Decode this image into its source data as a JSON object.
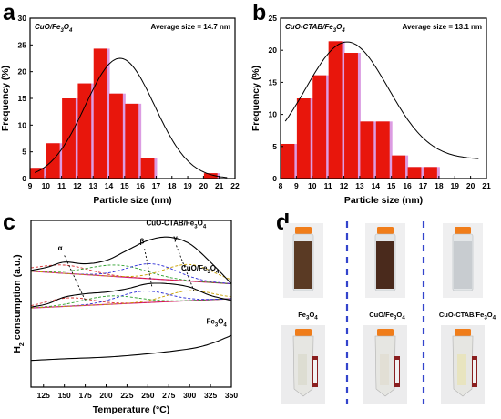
{
  "panels": {
    "a": "a",
    "b": "b",
    "c": "c",
    "d": "d"
  },
  "chart_data": [
    {
      "id": "a",
      "type": "bar",
      "sample_label": "CuO/Fe3O4",
      "annotation": "Average size = 14.7 nm",
      "xlabel": "Particle size (nm)",
      "ylabel": "Frequency (%)",
      "xlim": [
        9,
        22
      ],
      "ylim": [
        0,
        30
      ],
      "xticks": [
        9,
        10,
        11,
        12,
        13,
        14,
        15,
        16,
        17,
        18,
        19,
        20,
        21,
        22
      ],
      "yticks": [
        0,
        5,
        10,
        15,
        20,
        25,
        30
      ],
      "bins": [
        {
          "center": 9.5,
          "value": 2.0
        },
        {
          "center": 10.5,
          "value": 6.6
        },
        {
          "center": 11.5,
          "value": 15.0
        },
        {
          "center": 12.5,
          "value": 17.8
        },
        {
          "center": 13.5,
          "value": 24.3
        },
        {
          "center": 14.5,
          "value": 15.9
        },
        {
          "center": 15.5,
          "value": 14.0
        },
        {
          "center": 16.5,
          "value": 3.9
        },
        {
          "center": 17.5,
          "value": 0.0
        },
        {
          "center": 18.5,
          "value": 0.0
        },
        {
          "center": 19.5,
          "value": 0.0
        },
        {
          "center": 20.5,
          "value": 1.0
        }
      ],
      "fit": {
        "type": "gaussian",
        "peak_x": 14.7,
        "peak_y": 22.5,
        "sigma": 2.2
      },
      "colors": {
        "bar": "#e8160c",
        "bar_edge": "#d07bd8",
        "fit": "#000000"
      }
    },
    {
      "id": "b",
      "type": "bar",
      "sample_label": "CuO-CTAB/Fe3O4",
      "annotation": "Average size = 13.1 nm",
      "xlabel": "Particle size (nm)",
      "ylabel": "Frequency (%)",
      "xlim": [
        8,
        21
      ],
      "ylim": [
        0,
        25
      ],
      "xticks": [
        8,
        9,
        10,
        11,
        12,
        13,
        14,
        15,
        16,
        17,
        18,
        19,
        20,
        21
      ],
      "yticks": [
        0,
        5,
        10,
        15,
        20,
        25
      ],
      "bins": [
        {
          "center": 8.5,
          "value": 5.4
        },
        {
          "center": 9.5,
          "value": 12.5
        },
        {
          "center": 10.5,
          "value": 16.1
        },
        {
          "center": 11.5,
          "value": 21.4
        },
        {
          "center": 12.5,
          "value": 19.6
        },
        {
          "center": 13.5,
          "value": 8.9
        },
        {
          "center": 14.5,
          "value": 8.9
        },
        {
          "center": 15.5,
          "value": 3.6
        },
        {
          "center": 16.5,
          "value": 1.8
        },
        {
          "center": 17.5,
          "value": 1.8
        }
      ],
      "fit": {
        "type": "gaussian",
        "peak_x": 12.2,
        "peak_y": 21.3,
        "sigma": 2.6,
        "baseline": 3.0
      },
      "colors": {
        "bar": "#e8160c",
        "bar_edge": "#d07bd8",
        "fit": "#000000"
      }
    },
    {
      "id": "c",
      "type": "line",
      "xlabel": "Temperature (°C)",
      "ylabel": "H2 consumption (a.u.)",
      "xlim": [
        110,
        350
      ],
      "xticks": [
        125,
        150,
        175,
        200,
        225,
        250,
        275,
        300,
        325,
        350
      ],
      "series": [
        {
          "name": "CuO-CTAB/Fe3O4",
          "x": [
            110,
            130,
            150,
            175,
            200,
            225,
            250,
            275,
            300,
            325,
            350
          ],
          "y": [
            0.7,
            0.72,
            0.75,
            0.74,
            0.76,
            0.82,
            0.88,
            0.9,
            0.86,
            0.75,
            0.62
          ]
        },
        {
          "name": "CuO/Fe3O4",
          "x": [
            110,
            130,
            150,
            175,
            200,
            225,
            250,
            275,
            300,
            325,
            350
          ],
          "y": [
            0.48,
            0.5,
            0.54,
            0.56,
            0.57,
            0.59,
            0.62,
            0.62,
            0.6,
            0.55,
            0.52
          ]
        },
        {
          "name": "Fe3O4",
          "x": [
            110,
            150,
            200,
            250,
            300,
            325,
            350
          ],
          "y": [
            0.16,
            0.17,
            0.18,
            0.2,
            0.23,
            0.26,
            0.31
          ]
        }
      ],
      "annotations": [
        "α",
        "β",
        "γ"
      ],
      "colors": {
        "data": "#000000",
        "fit1": "#d62728",
        "fit2": "#2b2bd6",
        "fit3": "#2ca02c",
        "fit4": "#c8a000",
        "baseline": "#d02090"
      }
    }
  ],
  "photos": {
    "top_labels": [
      "Fe3O4",
      "CuO/Fe3O4",
      "CuO-CTAB/Fe3O4"
    ]
  }
}
